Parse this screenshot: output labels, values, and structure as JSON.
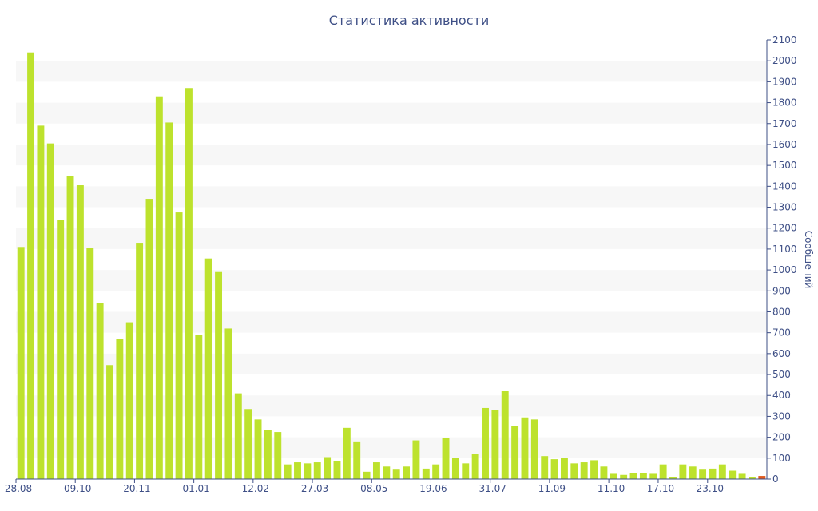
{
  "chart_data": {
    "type": "bar",
    "title": "Статистика активности",
    "xlabel": "",
    "ylabel": "Сообщений",
    "ylim": [
      0,
      2100
    ],
    "yticks": [
      0,
      100,
      200,
      300,
      400,
      500,
      600,
      700,
      800,
      900,
      1000,
      1100,
      1200,
      1300,
      1400,
      1500,
      1600,
      1700,
      1800,
      1900,
      2000,
      2100
    ],
    "y_axis_side": "right",
    "grid": "alternating horizontal bands",
    "x_tick_labels": [
      "28.08",
      "09.10",
      "20.11",
      "01.01",
      "12.02",
      "27.03",
      "08.05",
      "19.06",
      "31.07",
      "11.09",
      "11.10",
      "17.10",
      "23.10"
    ],
    "x_tick_label_indices": [
      0,
      6,
      12,
      18,
      24,
      30,
      36,
      42,
      48,
      54,
      60,
      65,
      70
    ],
    "bar_color": "#bde22d",
    "highlight_color": "#e05a1e",
    "values": [
      1110,
      2040,
      1690,
      1605,
      1240,
      1450,
      1405,
      1105,
      840,
      545,
      670,
      750,
      1130,
      1340,
      1830,
      1705,
      1275,
      1870,
      690,
      1055,
      990,
      720,
      410,
      335,
      285,
      235,
      225,
      70,
      80,
      75,
      80,
      105,
      85,
      245,
      180,
      35,
      80,
      60,
      45,
      60,
      185,
      50,
      70,
      195,
      100,
      75,
      120,
      340,
      330,
      420,
      255,
      295,
      285,
      110,
      95,
      100,
      75,
      80,
      90,
      60,
      25,
      20,
      30,
      30,
      25,
      70,
      10,
      70,
      60,
      45,
      50,
      70,
      40,
      25,
      8,
      15
    ],
    "highlight_index": 75
  }
}
